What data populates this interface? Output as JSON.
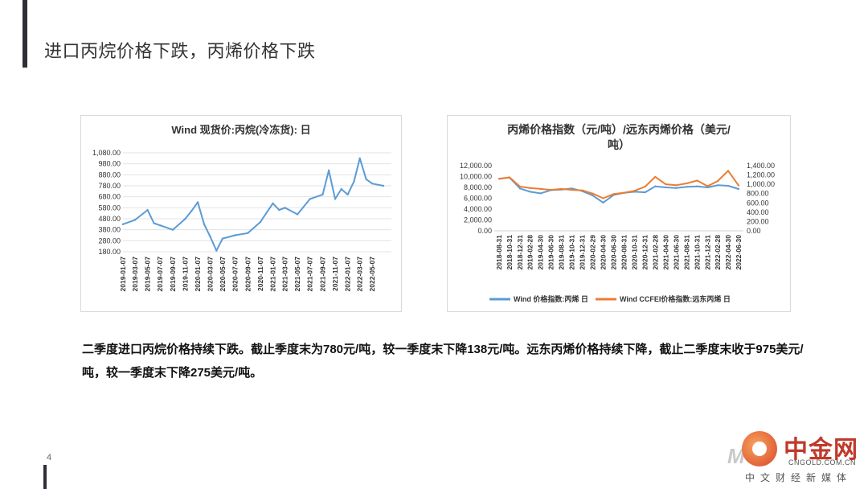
{
  "page": {
    "title": "进口丙烷价格下跌，丙烯价格下跌",
    "body_text": "二季度进口丙烷价格持续下跌。截止季度末为780元/吨，较一季度末下降138元/吨。远东丙烯价格持续下降，截止二季度末收于975美元/吨，较一季度末下降275美元/吨。",
    "page_number": "4"
  },
  "logo": {
    "main_text": "中金网",
    "domain_text": "CNGOLD.COM.CN",
    "sub_text": "中文财经新媒体",
    "icon": "cngold-logo-icon"
  },
  "chart_data": [
    {
      "type": "line",
      "title": "Wind 现货价:丙烷(冷冻货): 日",
      "x_tick_labels": [
        "2019-01-07",
        "2019-03-07",
        "2019-05-07",
        "2019-07-07",
        "2019-09-07",
        "2019-11-07",
        "2020-01-07",
        "2020-03-07",
        "2020-05-07",
        "2020-07-07",
        "2020-09-07",
        "2020-11-07",
        "2021-01-07",
        "2021-03-07",
        "2021-05-07",
        "2021-07-07",
        "2021-09-07",
        "2021-11-07",
        "2022-01-07",
        "2022-03-07",
        "2022-05-07"
      ],
      "y_tick_labels": [
        "1,080.00",
        "980.00",
        "880.00",
        "780.00",
        "680.00",
        "580.00",
        "480.00",
        "380.00",
        "280.00",
        "180.00"
      ],
      "ylim": [
        180,
        1080
      ],
      "grid": true,
      "color": "#5b9bd5",
      "series": [
        {
          "x": [
            "2019-01-07",
            "2019-03-07",
            "2019-05-07",
            "2019-06-07",
            "2019-07-07",
            "2019-09-07",
            "2019-11-07",
            "2019-12-07",
            "2020-01-07",
            "2020-02-07",
            "2020-03-07",
            "2020-04-07",
            "2020-05-07",
            "2020-07-07",
            "2020-09-07",
            "2020-11-07",
            "2021-01-07",
            "2021-02-07",
            "2021-03-07",
            "2021-05-07",
            "2021-07-07",
            "2021-09-07",
            "2021-10-07",
            "2021-11-07",
            "2021-12-07",
            "2022-01-07",
            "2022-02-07",
            "2022-03-07",
            "2022-04-07",
            "2022-05-07",
            "2022-06-30"
          ],
          "values": [
            430,
            470,
            560,
            440,
            420,
            380,
            480,
            550,
            630,
            430,
            320,
            190,
            300,
            330,
            350,
            450,
            620,
            560,
            580,
            520,
            660,
            700,
            920,
            660,
            750,
            700,
            820,
            1030,
            840,
            800,
            780
          ]
        }
      ]
    },
    {
      "type": "line",
      "title": "丙烯价格指数（元/吨）/远东丙烯价格（美元/吨）",
      "x_tick_labels": [
        "2018-08-31",
        "2018-10-31",
        "2018-12-31",
        "2019-02-28",
        "2019-04-30",
        "2019-06-30",
        "2019-08-31",
        "2019-10-31",
        "2019-12-31",
        "2020-02-29",
        "2020-04-30",
        "2020-06-30",
        "2020-08-31",
        "2020-10-31",
        "2020-12-31",
        "2021-02-28",
        "2021-04-30",
        "2021-06-30",
        "2021-08-31",
        "2021-10-31",
        "2021-12-31",
        "2022-02-28",
        "2022-04-30",
        "2022-06-30"
      ],
      "y_left_tick_labels": [
        "12,000.00",
        "10,000.00",
        "8,000.00",
        "6,000.00",
        "4,000.00",
        "2,000.00",
        "0.00"
      ],
      "y_right_tick_labels": [
        "1,400.00",
        "1,200.00",
        "1,000.00",
        "800.00",
        "600.00",
        "400.00",
        "200.00",
        "0.00"
      ],
      "ylim_left": [
        0,
        12000
      ],
      "ylim_right": [
        0,
        1400
      ],
      "grid": false,
      "legend_position": "bottom",
      "series": [
        {
          "name": "Wind 价格指数:丙烯 日",
          "axis": "left",
          "color": "#5b9bd5",
          "x": [
            "2018-08-31",
            "2018-10-31",
            "2018-12-31",
            "2019-02-28",
            "2019-04-30",
            "2019-06-30",
            "2019-08-31",
            "2019-10-31",
            "2019-12-31",
            "2020-02-29",
            "2020-04-30",
            "2020-06-30",
            "2020-08-31",
            "2020-10-31",
            "2020-12-31",
            "2021-02-28",
            "2021-04-30",
            "2021-06-30",
            "2021-08-31",
            "2021-10-31",
            "2021-12-31",
            "2022-02-28",
            "2022-04-30",
            "2022-06-30"
          ],
          "values": [
            9600,
            9800,
            7800,
            7200,
            6900,
            7500,
            7600,
            7800,
            7300,
            6500,
            5200,
            6600,
            7000,
            7200,
            7100,
            8200,
            8000,
            7900,
            8100,
            8200,
            8000,
            8400,
            8300,
            7700
          ]
        },
        {
          "name": "Wind CCFEI价格指数:远东丙烯 日",
          "axis": "right",
          "color": "#ed7d31",
          "x": [
            "2018-08-31",
            "2018-10-31",
            "2018-12-31",
            "2019-02-28",
            "2019-04-30",
            "2019-06-30",
            "2019-08-31",
            "2019-10-31",
            "2019-12-31",
            "2020-02-29",
            "2020-04-30",
            "2020-06-30",
            "2020-08-31",
            "2020-10-31",
            "2020-12-31",
            "2021-02-28",
            "2021-04-30",
            "2021-06-30",
            "2021-08-31",
            "2021-10-31",
            "2021-12-31",
            "2022-02-28",
            "2022-04-30",
            "2022-06-30"
          ],
          "values": [
            1120,
            1150,
            950,
            920,
            900,
            880,
            900,
            880,
            870,
            800,
            700,
            790,
            820,
            860,
            950,
            1160,
            1000,
            980,
            1020,
            1080,
            960,
            1070,
            1290,
            975
          ]
        }
      ]
    }
  ]
}
